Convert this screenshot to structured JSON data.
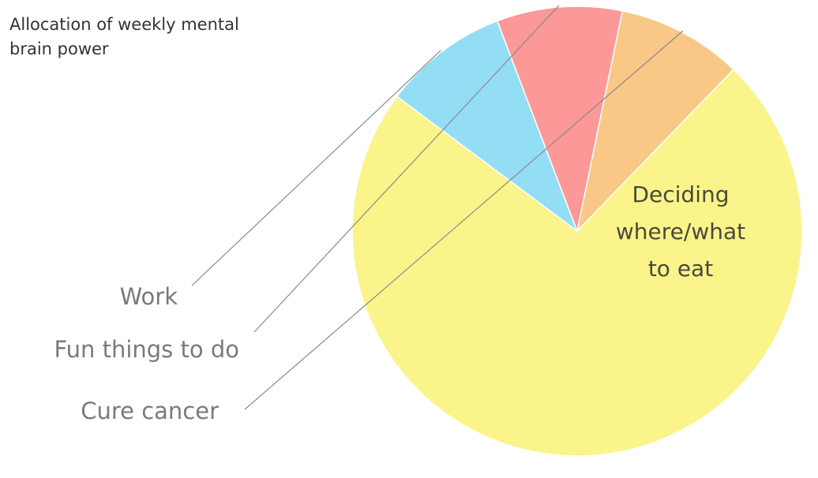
{
  "chart_data": {
    "type": "pie",
    "title": "Allocation of weekly mental brain power",
    "categories": [
      "Deciding where/what to eat",
      "Work",
      "Fun things to do",
      "Cure cancer"
    ],
    "values": [
      73,
      9,
      9,
      9
    ],
    "colors": [
      "#FAF48A",
      "#93DEF5",
      "#FC9898",
      "#F9C886"
    ],
    "inside_label_lines": [
      "Deciding",
      "where/what",
      "to eat"
    ],
    "legend": "none"
  }
}
